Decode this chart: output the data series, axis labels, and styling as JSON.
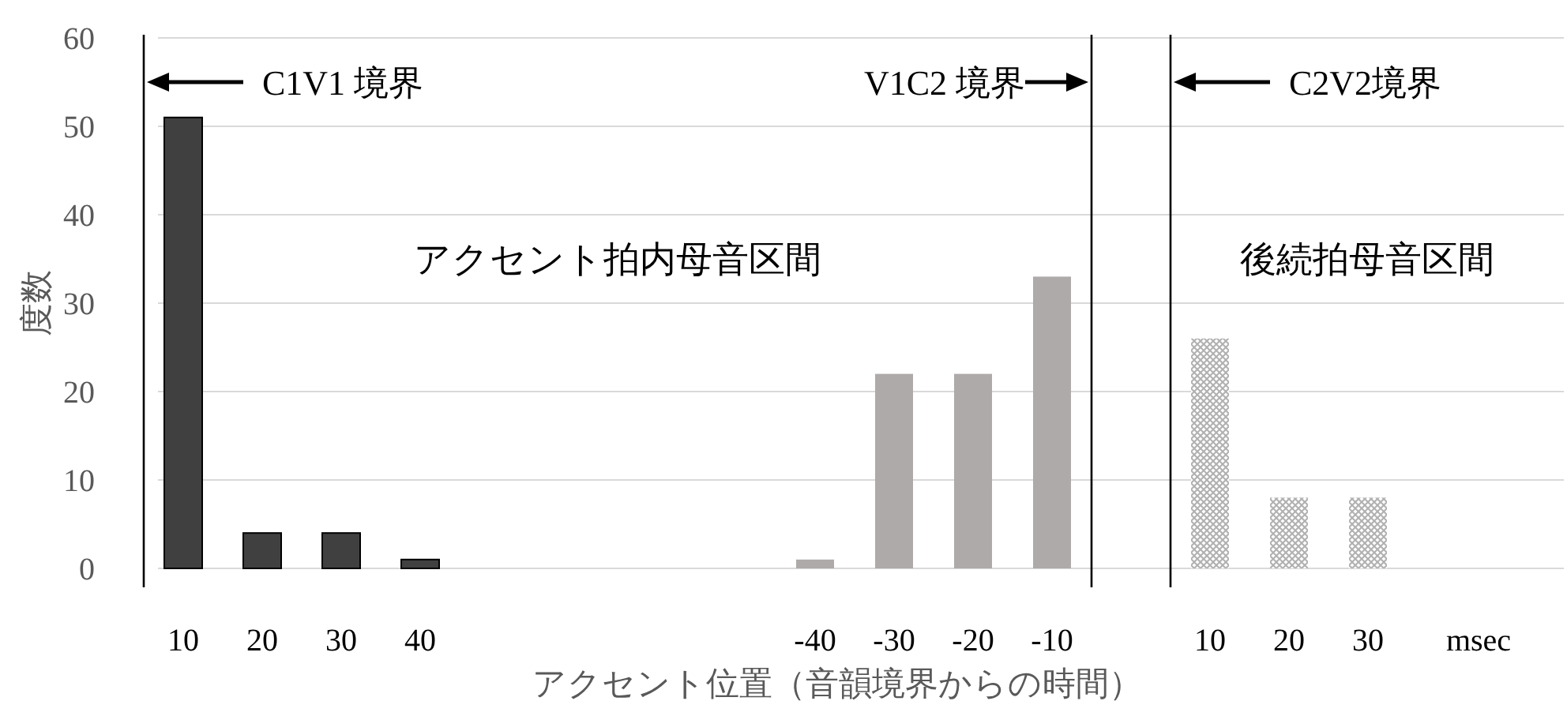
{
  "chart_data": {
    "type": "bar",
    "xlabel": "アクセント位置（音韻境界からの時間）",
    "ylabel": "度数",
    "categories": [
      "10",
      "20",
      "30",
      "40",
      null,
      null,
      null,
      null,
      "-40",
      "-30",
      "-20",
      "-10",
      null,
      "10",
      "20",
      "30"
    ],
    "values": [
      51,
      4,
      4,
      1,
      null,
      null,
      null,
      null,
      1,
      22,
      22,
      33,
      null,
      26,
      8,
      8
    ],
    "colors": [
      "#404040",
      "#404040",
      "#404040",
      "#404040",
      null,
      null,
      null,
      null,
      "#aeaaaa",
      "#aeaaaa",
      "#aeaaaa",
      "#aeaaaa",
      null,
      "#bfbfbf",
      "#bfbfbf",
      "#bfbfbf"
    ],
    "ylim": [
      0,
      60
    ],
    "yticks": [
      0,
      10,
      20,
      30,
      40,
      50,
      60
    ],
    "grid": "y",
    "annotations": [
      "C1V1 境界",
      "V1C2 境界",
      "C2V2境界",
      "アクセント拍内母音区間",
      "後続拍母音区間",
      "msec"
    ]
  }
}
